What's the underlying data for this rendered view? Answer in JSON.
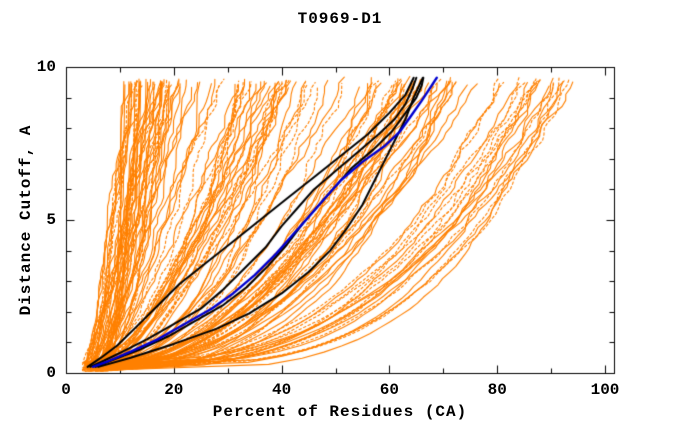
{
  "page": {
    "background": "#FFFFFF"
  },
  "chart_data": {
    "type": "line",
    "title": "T0969-D1",
    "xlabel": "Percent of Residues (CA)",
    "ylabel": "Distance Cutoff, A",
    "xlim": [
      0,
      101.7
    ],
    "ylim": [
      0,
      10
    ],
    "x_major_ticks": [
      0,
      20,
      40,
      60,
      80,
      100
    ],
    "x_minor_ticks": [
      10,
      30,
      50,
      70,
      90
    ],
    "y_major_ticks": [
      0,
      5,
      10
    ],
    "y_minor_ticks": [
      1,
      2,
      3,
      4,
      6,
      7,
      8,
      9
    ],
    "x_tick_labels": [
      "0",
      "20",
      "40",
      "60",
      "80",
      "100"
    ],
    "y_tick_labels": [
      "0",
      "5",
      "10"
    ],
    "grid": false,
    "legend": false,
    "frame_color": "#000000",
    "text_color": "#000000",
    "series": [
      {
        "name": "highlight-model-blue",
        "color": "#0000D0",
        "width": 2.4,
        "points": [
          [
            5,
            0.2
          ],
          [
            8,
            0.4
          ],
          [
            12,
            0.7
          ],
          [
            17,
            1.1
          ],
          [
            22,
            1.6
          ],
          [
            27,
            2.1
          ],
          [
            31,
            2.6
          ],
          [
            35,
            3.2
          ],
          [
            39,
            3.9
          ],
          [
            42,
            4.5
          ],
          [
            45,
            5.1
          ],
          [
            48,
            5.7
          ],
          [
            51,
            6.3
          ],
          [
            55,
            6.9
          ],
          [
            59,
            7.4
          ],
          [
            62,
            7.9
          ],
          [
            64,
            8.4
          ],
          [
            66,
            8.9
          ],
          [
            67.5,
            9.3
          ],
          [
            68.8,
            9.65
          ]
        ]
      },
      {
        "name": "reference-model-black-1",
        "color": "#000000",
        "width": 2,
        "points": [
          [
            4.5,
            0.2
          ],
          [
            7,
            0.4
          ],
          [
            10.5,
            0.7
          ],
          [
            15,
            1.1
          ],
          [
            20,
            1.6
          ],
          [
            25,
            2.1
          ],
          [
            29,
            2.7
          ],
          [
            33,
            3.4
          ],
          [
            37,
            4.1
          ],
          [
            40,
            4.8
          ],
          [
            43,
            5.4
          ],
          [
            46,
            6.0
          ],
          [
            50,
            6.6
          ],
          [
            54,
            7.2
          ],
          [
            58,
            7.8
          ],
          [
            61,
            8.3
          ],
          [
            63,
            8.8
          ],
          [
            64.3,
            9.3
          ],
          [
            65,
            9.65
          ]
        ]
      },
      {
        "name": "reference-model-black-2",
        "color": "#000000",
        "width": 2,
        "points": [
          [
            5.5,
            0.2
          ],
          [
            9,
            0.45
          ],
          [
            13.5,
            0.75
          ],
          [
            19,
            1.2
          ],
          [
            24,
            1.7
          ],
          [
            29,
            2.2
          ],
          [
            33.5,
            2.8
          ],
          [
            37.5,
            3.5
          ],
          [
            41,
            4.2
          ],
          [
            44,
            4.9
          ],
          [
            47,
            5.5
          ],
          [
            50,
            6.1
          ],
          [
            53,
            6.7
          ],
          [
            57,
            7.3
          ],
          [
            60.5,
            7.9
          ],
          [
            63,
            8.5
          ],
          [
            65,
            9.0
          ],
          [
            66,
            9.4
          ],
          [
            66.3,
            9.65
          ]
        ]
      },
      {
        "name": "reference-model-black-3",
        "color": "#000000",
        "width": 2,
        "points": [
          [
            6,
            0.2
          ],
          [
            12,
            0.5
          ],
          [
            20,
            0.95
          ],
          [
            28,
            1.45
          ],
          [
            34,
            1.95
          ],
          [
            40,
            2.6
          ],
          [
            45,
            3.3
          ],
          [
            49,
            4.0
          ],
          [
            52,
            4.7
          ],
          [
            55,
            5.5
          ],
          [
            57,
            6.2
          ],
          [
            59,
            6.9
          ],
          [
            61,
            7.6
          ],
          [
            63,
            8.3
          ],
          [
            64.5,
            9.0
          ],
          [
            65.8,
            9.5
          ],
          [
            66.2,
            9.65
          ]
        ]
      },
      {
        "name": "reference-model-black-4",
        "color": "#000000",
        "width": 2,
        "points": [
          [
            4,
            0.2
          ],
          [
            6.5,
            0.5
          ],
          [
            9.5,
            0.9
          ],
          [
            13,
            1.5
          ],
          [
            17,
            2.2
          ],
          [
            21,
            2.9
          ],
          [
            26,
            3.6
          ],
          [
            31,
            4.3
          ],
          [
            36,
            5.0
          ],
          [
            41,
            5.7
          ],
          [
            46,
            6.4
          ],
          [
            51,
            7.1
          ],
          [
            56,
            7.8
          ],
          [
            60,
            8.5
          ],
          [
            63,
            9.1
          ],
          [
            64.5,
            9.65
          ]
        ]
      }
    ],
    "ensemble": {
      "name": "server-models-orange",
      "color": "#FF8000",
      "count": 145,
      "seed": 20969,
      "line_width": 1.1,
      "dashed_fraction": 0.3,
      "x_start_range": [
        3,
        8
      ],
      "y_start_range": [
        0.05,
        0.35
      ],
      "y_top_range": [
        9.5,
        9.7
      ],
      "wiggle": 1.0,
      "groups": [
        {
          "weight": 0.28,
          "xe": [
            10,
            22
          ],
          "q": [
            0.5,
            0.95
          ]
        },
        {
          "weight": 0.24,
          "xe": [
            22,
            42
          ],
          "q": [
            0.4,
            0.8
          ]
        },
        {
          "weight": 0.07,
          "xe": [
            42,
            55
          ],
          "q": [
            0.35,
            0.7
          ]
        },
        {
          "weight": 0.26,
          "xe": [
            55,
            76
          ],
          "q": [
            0.3,
            0.55
          ]
        },
        {
          "weight": 0.15,
          "xe": [
            79,
            97
          ],
          "q": [
            0.25,
            0.42
          ]
        }
      ]
    }
  }
}
